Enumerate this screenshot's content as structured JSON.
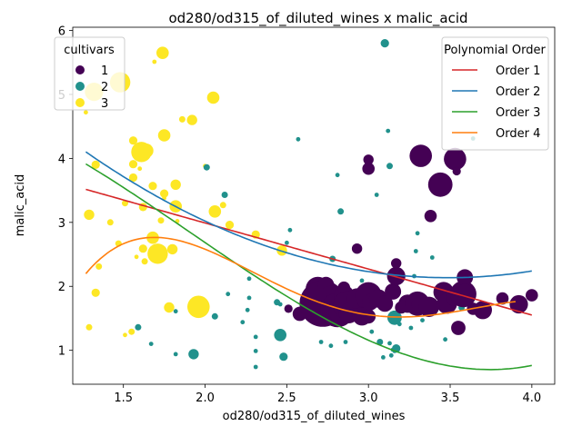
{
  "chart_data": {
    "type": "scatter",
    "title": "od280/od315_of_diluted_wines x malic_acid",
    "xlabel": "od280/od315_of_diluted_wines",
    "ylabel": "malic_acid",
    "xlim": [
      1.19,
      4.14
    ],
    "ylim": [
      0.47,
      6.05
    ],
    "xticks": [
      "1.5",
      "2.0",
      "2.5",
      "3.0",
      "3.5",
      "4.0"
    ],
    "xtick_values": [
      1.5,
      2.0,
      2.5,
      3.0,
      3.5,
      4.0
    ],
    "yticks": [
      "1",
      "2",
      "3",
      "4",
      "5",
      "6"
    ],
    "ytick_values": [
      1,
      2,
      3,
      4,
      5,
      6
    ],
    "grid": false,
    "colors": {
      "c1": "#440154",
      "c2": "#21918c",
      "c3": "#fde725"
    },
    "legend_cultivars": {
      "title": "cultivars",
      "placement": "upper-left",
      "entries": [
        {
          "label": "1",
          "color": "#440154"
        },
        {
          "label": "2",
          "color": "#21918c"
        },
        {
          "label": "3",
          "color": "#fde725"
        }
      ]
    },
    "legend_poly": {
      "title": "Polynomial Order",
      "placement": "upper-right",
      "entries": [
        {
          "label": "Order 1",
          "color": "#d62728"
        },
        {
          "label": "Order 2",
          "color": "#1f77b4"
        },
        {
          "label": "Order 3",
          "color": "#2ca02c"
        },
        {
          "label": "Order 4",
          "color": "#ff7f0e"
        }
      ]
    },
    "series": [
      {
        "cultivar": "3",
        "points": [
          [
            1.27,
            4.72,
            1
          ],
          [
            1.29,
            1.36,
            2
          ],
          [
            1.29,
            3.12,
            4
          ],
          [
            1.32,
            5.04,
            8
          ],
          [
            1.33,
            1.9,
            3
          ],
          [
            1.33,
            3.9,
            3
          ],
          [
            1.35,
            2.31,
            2
          ],
          [
            1.42,
            3.0,
            2
          ],
          [
            1.47,
            2.67,
            2
          ],
          [
            1.48,
            5.19,
            9
          ],
          [
            1.51,
            1.24,
            1
          ],
          [
            1.51,
            3.3,
            2
          ],
          [
            1.55,
            1.29,
            2
          ],
          [
            1.56,
            3.91,
            3
          ],
          [
            1.56,
            4.28,
            3
          ],
          [
            1.56,
            3.7,
            3
          ],
          [
            1.58,
            2.46,
            1
          ],
          [
            1.6,
            3.84,
            1
          ],
          [
            1.61,
            4.1,
            9
          ],
          [
            1.62,
            3.24,
            3
          ],
          [
            1.62,
            2.59,
            3
          ],
          [
            1.63,
            2.39,
            2
          ],
          [
            1.64,
            4.12,
            6
          ],
          [
            1.68,
            3.57,
            3
          ],
          [
            1.68,
            2.76,
            5
          ],
          [
            1.69,
            5.51,
            1
          ],
          [
            1.71,
            2.51,
            9
          ],
          [
            1.73,
            3.03,
            2
          ],
          [
            1.74,
            5.65,
            5
          ],
          [
            1.75,
            3.45,
            3
          ],
          [
            1.75,
            4.36,
            5
          ],
          [
            1.75,
            3.38,
            1
          ],
          [
            1.78,
            1.67,
            4
          ],
          [
            1.8,
            2.58,
            4
          ],
          [
            1.82,
            3.59,
            4
          ],
          [
            1.82,
            3.25,
            5
          ],
          [
            1.83,
            3.02,
            1
          ],
          [
            1.86,
            4.61,
            2
          ],
          [
            1.92,
            4.6,
            4
          ],
          [
            1.96,
            1.68,
            10
          ],
          [
            2.0,
            3.88,
            1
          ],
          [
            2.05,
            4.95,
            5
          ],
          [
            2.06,
            3.17,
            5
          ],
          [
            2.11,
            3.27,
            2
          ],
          [
            2.15,
            2.96,
            3
          ],
          [
            2.31,
            2.81,
            3
          ],
          [
            2.47,
            2.56,
            4
          ]
        ]
      },
      {
        "cultivar": "2",
        "points": [
          [
            1.59,
            1.36,
            2
          ],
          [
            1.67,
            1.1,
            1
          ],
          [
            1.82,
            0.94,
            1
          ],
          [
            1.82,
            1.61,
            1
          ],
          [
            1.93,
            0.94,
            4
          ],
          [
            2.01,
            3.86,
            2
          ],
          [
            2.06,
            1.53,
            2
          ],
          [
            2.12,
            3.43,
            2
          ],
          [
            2.14,
            1.88,
            1
          ],
          [
            2.23,
            1.44,
            1
          ],
          [
            2.26,
            1.63,
            1
          ],
          [
            2.27,
            2.12,
            1
          ],
          [
            2.27,
            1.82,
            1
          ],
          [
            2.31,
            0.74,
            1
          ],
          [
            2.31,
            0.99,
            1
          ],
          [
            2.31,
            1.21,
            1
          ],
          [
            2.44,
            1.75,
            2
          ],
          [
            2.46,
            1.24,
            5
          ],
          [
            2.46,
            1.72,
            1
          ],
          [
            2.48,
            0.9,
            3
          ],
          [
            2.5,
            2.68,
            1
          ],
          [
            2.52,
            2.88,
            1
          ],
          [
            2.57,
            4.3,
            1
          ],
          [
            2.63,
            1.67,
            1
          ],
          [
            2.64,
            1.52,
            1
          ],
          [
            2.64,
            1.51,
            2
          ],
          [
            2.71,
            1.13,
            1
          ],
          [
            2.77,
            1.07,
            1
          ],
          [
            2.78,
            1.66,
            4
          ],
          [
            2.78,
            2.43,
            2
          ],
          [
            2.81,
            3.74,
            1
          ],
          [
            2.82,
            1.51,
            1
          ],
          [
            2.83,
            3.17,
            2
          ],
          [
            2.84,
            1.63,
            1
          ],
          [
            2.85,
            1.5,
            1
          ],
          [
            2.86,
            1.13,
            1
          ],
          [
            2.87,
            1.81,
            1
          ],
          [
            2.88,
            1.61,
            2
          ],
          [
            2.93,
            1.67,
            1
          ],
          [
            2.96,
            2.09,
            1
          ],
          [
            2.99,
            1.48,
            1
          ],
          [
            3.02,
            1.29,
            1
          ],
          [
            3.05,
            3.43,
            1
          ],
          [
            3.07,
            1.13,
            2
          ],
          [
            3.09,
            0.89,
            1
          ],
          [
            3.1,
            5.8,
            3
          ],
          [
            3.12,
            4.43,
            1
          ],
          [
            3.13,
            3.88,
            2
          ],
          [
            3.13,
            1.11,
            1
          ],
          [
            3.14,
            0.92,
            1
          ],
          [
            3.15,
            1.01,
            1
          ],
          [
            3.16,
            1.51,
            6
          ],
          [
            3.16,
            0.99,
            1
          ],
          [
            3.17,
            1.03,
            3
          ],
          [
            3.18,
            1.9,
            2
          ],
          [
            3.19,
            1.41,
            1
          ],
          [
            3.21,
            1.61,
            1
          ],
          [
            3.26,
            1.35,
            1
          ],
          [
            3.28,
            2.16,
            1
          ],
          [
            3.29,
            2.55,
            1
          ],
          [
            3.3,
            2.83,
            1
          ],
          [
            3.33,
            1.47,
            1
          ],
          [
            3.38,
            1.66,
            1
          ],
          [
            3.39,
            1.71,
            1
          ],
          [
            3.39,
            2.45,
            1
          ],
          [
            3.47,
            1.17,
            1
          ],
          [
            3.57,
            1.67,
            2
          ],
          [
            3.64,
            4.31,
            1
          ],
          [
            3.69,
            1.59,
            1
          ]
        ]
      },
      {
        "cultivar": "1",
        "points": [
          [
            2.51,
            1.65,
            3
          ],
          [
            2.58,
            1.57,
            6
          ],
          [
            2.69,
            1.96,
            11
          ],
          [
            2.71,
            1.95,
            8
          ],
          [
            2.72,
            1.73,
            22
          ],
          [
            2.74,
            2.02,
            7
          ],
          [
            2.75,
            1.8,
            8
          ],
          [
            2.77,
            1.77,
            14
          ],
          [
            2.78,
            1.68,
            11
          ],
          [
            2.8,
            1.84,
            8
          ],
          [
            2.81,
            1.63,
            16
          ],
          [
            2.82,
            1.59,
            9
          ],
          [
            2.85,
            1.86,
            9
          ],
          [
            2.85,
            1.98,
            5
          ],
          [
            2.87,
            1.7,
            13
          ],
          [
            2.88,
            1.58,
            9
          ],
          [
            2.93,
            2.59,
            4
          ],
          [
            2.93,
            1.81,
            9
          ],
          [
            2.96,
            1.53,
            8
          ],
          [
            2.97,
            1.76,
            5
          ],
          [
            2.98,
            1.79,
            7
          ],
          [
            3.0,
            1.53,
            6
          ],
          [
            3.0,
            3.84,
            5
          ],
          [
            3.0,
            3.98,
            4
          ],
          [
            3.0,
            1.86,
            12
          ],
          [
            3.01,
            1.75,
            7
          ],
          [
            3.06,
            1.81,
            8
          ],
          [
            3.1,
            1.73,
            7
          ],
          [
            3.15,
            1.92,
            7
          ],
          [
            3.17,
            2.16,
            8
          ],
          [
            3.17,
            2.36,
            4
          ],
          [
            3.2,
            1.67,
            5
          ],
          [
            3.24,
            1.73,
            8
          ],
          [
            3.26,
            1.75,
            5
          ],
          [
            3.3,
            1.73,
            11
          ],
          [
            3.32,
            1.72,
            8
          ],
          [
            3.32,
            4.04,
            10
          ],
          [
            3.37,
            1.68,
            9
          ],
          [
            3.38,
            3.1,
            5
          ],
          [
            3.44,
            3.59,
            11
          ],
          [
            3.46,
            1.91,
            9
          ],
          [
            3.48,
            1.73,
            9
          ],
          [
            3.52,
            1.81,
            6
          ],
          [
            3.53,
            3.99,
            10
          ],
          [
            3.54,
            3.8,
            3
          ],
          [
            3.55,
            1.35,
            6
          ],
          [
            3.58,
            1.88,
            12
          ],
          [
            3.59,
            2.14,
            7
          ],
          [
            3.59,
            1.95,
            5
          ],
          [
            3.64,
            1.65,
            5
          ],
          [
            3.7,
            1.63,
            8
          ],
          [
            3.82,
            1.81,
            5
          ],
          [
            3.92,
            1.72,
            8
          ],
          [
            4.0,
            1.86,
            5
          ]
        ]
      }
    ],
    "fits": [
      {
        "name": "Order 1",
        "color": "#d62728",
        "x0": 1.27,
        "x1": 4.0,
        "coef": [
          4.4305,
          -0.72
        ]
      },
      {
        "name": "Order 2",
        "color": "#1f77b4",
        "x0": 1.27,
        "x1": 4.0,
        "coef": [
          7.0,
          -2.79,
          0.4
        ]
      },
      {
        "name": "Order 3",
        "color": "#2ca02c",
        "x0": 1.27,
        "x1": 4.0,
        "coef": [
          4.956,
          0.168,
          -1.0,
          0.174
        ]
      },
      {
        "name": "Order 4",
        "color": "#ff7f0e",
        "x0": 1.27,
        "x1": 3.9,
        "coef": [
          -15.5,
          30.0,
          -17.3,
          4.1,
          -0.345
        ]
      }
    ]
  }
}
